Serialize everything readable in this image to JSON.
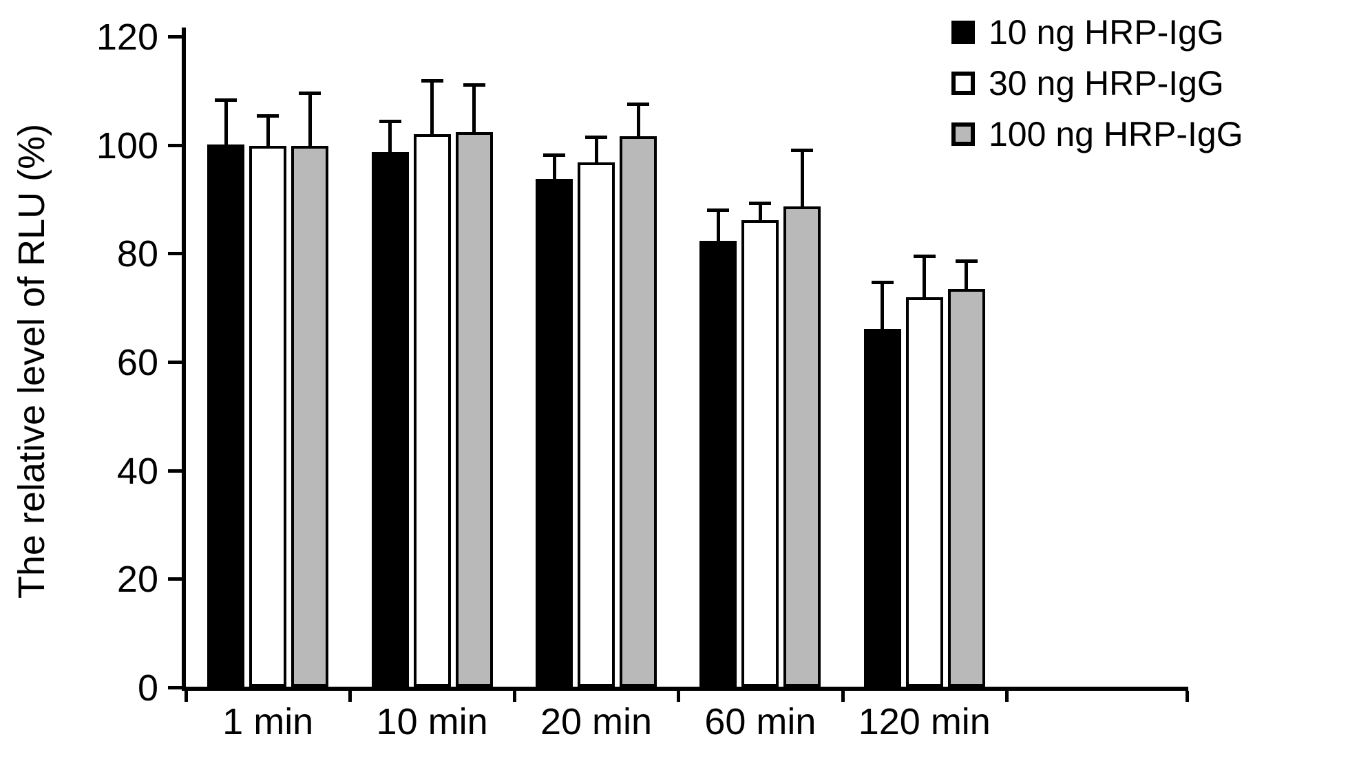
{
  "chart_data": {
    "type": "bar",
    "title": "",
    "xlabel": "",
    "ylabel": "The relative level of RLU (%)",
    "ylim": [
      0,
      120
    ],
    "yticks": [
      0,
      20,
      40,
      60,
      80,
      100,
      120
    ],
    "categories": [
      "1 min",
      "10 min",
      "20 min",
      "60 min",
      "120 min"
    ],
    "series": [
      {
        "name": "10 ng HRP-IgG",
        "fill": "#000000",
        "border": "#000000",
        "values": [
          100.0,
          98.5,
          93.6,
          82.2,
          66.0
        ],
        "errors": [
          8.2,
          5.8,
          4.4,
          5.7,
          8.6
        ]
      },
      {
        "name": "30 ng HRP-IgG",
        "fill": "#ffffff",
        "border": "#000000",
        "values": [
          99.7,
          101.8,
          96.7,
          86.0,
          71.8
        ],
        "errors": [
          5.6,
          9.9,
          4.6,
          3.2,
          7.6
        ]
      },
      {
        "name": "100 ng HRP-IgG",
        "fill": "#b9b9b9",
        "border": "#000000",
        "values": [
          99.7,
          102.3,
          101.5,
          88.6,
          73.3
        ],
        "errors": [
          9.8,
          8.7,
          5.9,
          10.4,
          5.2
        ]
      }
    ],
    "error_bars": "upper",
    "grid": false,
    "legend_position": "top-right"
  },
  "colors": {
    "axis": "#000000",
    "text": "#000000",
    "background": "#ffffff"
  }
}
